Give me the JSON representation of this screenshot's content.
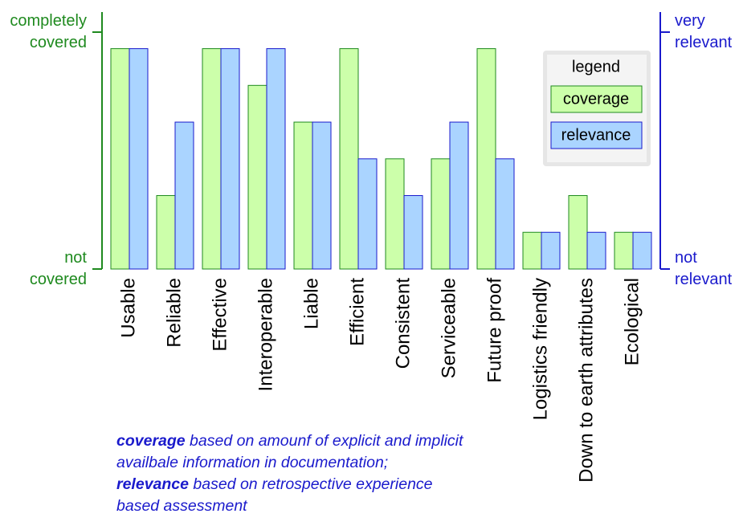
{
  "chart_data": {
    "type": "bar",
    "categories": [
      "Usable",
      "Reliable",
      "Effective",
      "Interoperable",
      "Liable",
      "Efficient",
      "Consistent",
      "Serviceable",
      "Future proof",
      "Logistics friendly",
      "Down to earth attributes",
      "Ecological"
    ],
    "series": [
      {
        "name": "coverage",
        "color": "#ccffaa",
        "stroke": "#1f8a1f",
        "values": [
          6,
          2,
          6,
          5,
          4,
          6,
          3,
          3,
          6,
          1,
          2,
          1
        ]
      },
      {
        "name": "relevance",
        "color": "#aad4ff",
        "stroke": "#1a1acc",
        "axis": "y2",
        "values": [
          6,
          4,
          6,
          6,
          4,
          3,
          2,
          4,
          3,
          1,
          1,
          1
        ]
      }
    ],
    "ylim": [
      0,
      6.45
    ],
    "yticks": [
      {
        "value": 0,
        "label": "not covered"
      },
      {
        "value": 6.45,
        "label": "completely covered"
      }
    ],
    "y2lim": [
      0,
      6.45
    ],
    "y2ticks": [
      {
        "value": 0,
        "label": "not relevant"
      },
      {
        "value": 6.45,
        "label": "very relevant"
      }
    ],
    "legend_title": "legend",
    "legend": "upper right",
    "footnote": [
      {
        "bold": "coverage",
        "text": " based on amounf of explicit and implicit availbale information in documentation;"
      },
      {
        "bold": "relevance",
        "text": " based on retrospective experience based assessment"
      }
    ]
  }
}
